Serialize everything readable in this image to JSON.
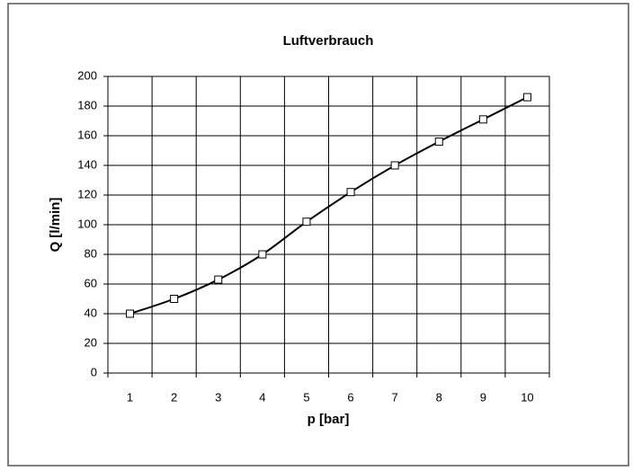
{
  "chart_data": {
    "type": "line",
    "title": "Luftverbrauch",
    "xlabel": "p [bar]",
    "ylabel": "Q [l/min]",
    "categories": [
      "1",
      "2",
      "3",
      "4",
      "5",
      "6",
      "7",
      "8",
      "9",
      "10"
    ],
    "values": [
      40,
      50,
      63,
      80,
      102,
      122,
      140,
      156,
      171,
      186
    ],
    "color": "#000000",
    "ylim": [
      0,
      200
    ],
    "yticks": [
      0,
      20,
      40,
      60,
      80,
      100,
      120,
      140,
      160,
      180,
      200
    ],
    "grid": true
  }
}
